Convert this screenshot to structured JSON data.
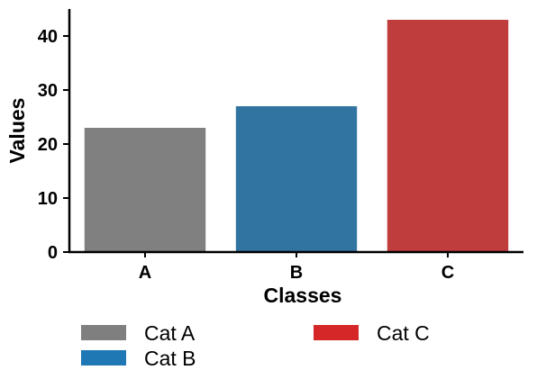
{
  "chart_data": {
    "type": "bar",
    "categories": [
      "A",
      "B",
      "C"
    ],
    "values": [
      23,
      27,
      43
    ],
    "colors": [
      "#808080",
      "#3274a1",
      "#c03d3e"
    ],
    "xlabel": "Classes",
    "ylabel": "Values",
    "ylim": [
      0,
      45
    ],
    "yticks": [
      0,
      10,
      20,
      30,
      40
    ],
    "grid": false,
    "legend": {
      "placement": "bottom",
      "entries": [
        {
          "label": "Cat A",
          "color": "#7f7f7f"
        },
        {
          "label": "Cat B",
          "color": "#1f77b4"
        },
        {
          "label": "Cat C",
          "color": "#d62728"
        }
      ]
    }
  }
}
